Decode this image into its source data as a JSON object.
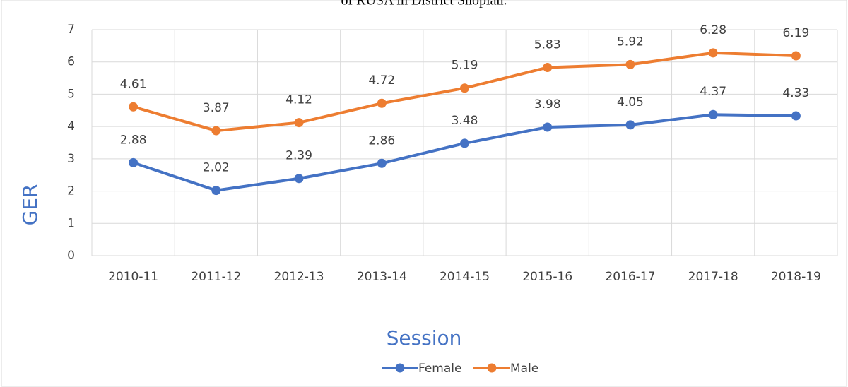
{
  "chart_data": {
    "type": "line",
    "title": "of RUSA in District Shopian.",
    "x_label": "Session",
    "y_label": "GER",
    "categories": [
      "2010-11",
      "2011-12",
      "2012-13",
      "2013-14",
      "2014-15",
      "2015-16",
      "2016-17",
      "2017-18",
      "2018-19"
    ],
    "series": [
      {
        "name": "Female",
        "color": "#4472c4",
        "values": [
          2.88,
          2.02,
          2.39,
          2.86,
          3.48,
          3.98,
          4.05,
          4.37,
          4.33
        ]
      },
      {
        "name": "Male",
        "color": "#ed7d31",
        "values": [
          4.61,
          3.87,
          4.12,
          4.72,
          5.19,
          5.83,
          5.92,
          6.28,
          6.19
        ]
      }
    ],
    "ylim": [
      0,
      7
    ],
    "yticks": [
      0,
      1,
      2,
      3,
      4,
      5,
      6,
      7
    ],
    "grid": true,
    "legend": "bottom"
  }
}
